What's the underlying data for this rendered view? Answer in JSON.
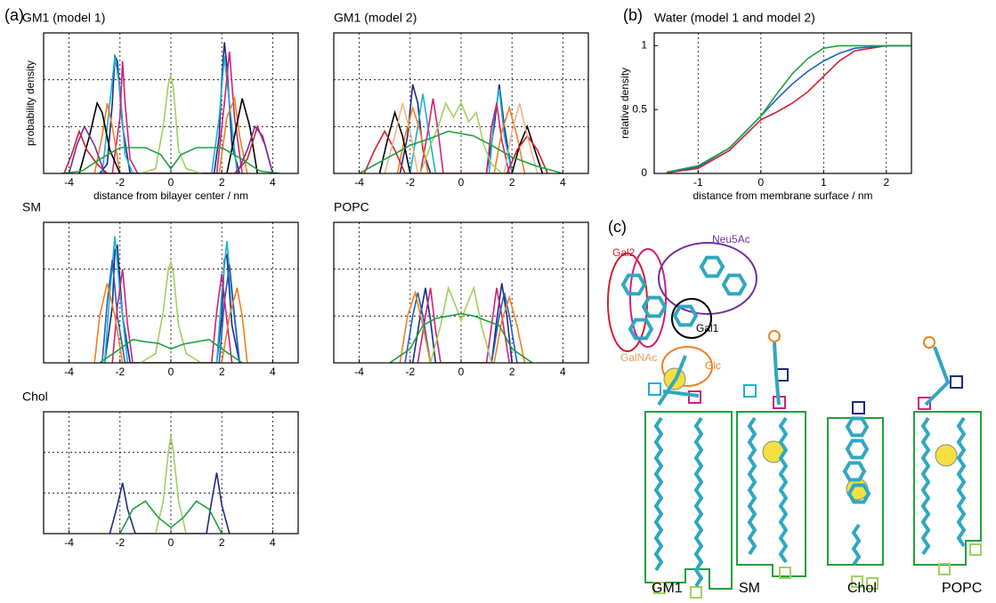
{
  "panel_labels": [
    "(a)",
    "(b)",
    "(c)"
  ],
  "chart_data": [
    {
      "type": "line",
      "title": "GM1 (model 1)",
      "xlabel": "distance from bilayer center / nm",
      "ylabel": "probability density",
      "xlim": [
        -5,
        5
      ],
      "xticks": [
        -4,
        -2,
        0,
        2,
        4
      ],
      "ylim": [
        0,
        3
      ],
      "ygrid": [
        1,
        2
      ],
      "series": [
        {
          "color": "#1f2a80",
          "x": [
            -2.8,
            -2.5,
            -2.3,
            -2.2,
            -2.1,
            -1.9,
            -1.6,
            1.7,
            1.9,
            2.0,
            2.1,
            2.2,
            2.4,
            2.7
          ],
          "values": [
            0,
            0.2,
            1.5,
            2.5,
            2.4,
            1.0,
            0,
            0,
            0.8,
            2.0,
            2.8,
            2.3,
            0.6,
            0
          ]
        },
        {
          "color": "#1ab0d8",
          "x": [
            -2.7,
            -2.4,
            -2.2,
            -2.0,
            -1.8,
            -1.5,
            1.6,
            1.9,
            2.1,
            2.3,
            2.6
          ],
          "values": [
            0,
            1.5,
            2.5,
            1.8,
            0.4,
            0,
            0,
            1.2,
            2.5,
            1.5,
            0
          ]
        },
        {
          "color": "#d0207a",
          "x": [
            -2.3,
            -2.0,
            -1.9,
            -1.8,
            -1.6,
            -1.3,
            1.8,
            2.1,
            2.3,
            2.5,
            2.8
          ],
          "values": [
            0,
            1.2,
            2.4,
            1.5,
            0.3,
            0,
            0,
            1.5,
            2.6,
            1.2,
            0
          ]
        },
        {
          "color": "#f08020",
          "x": [
            -3.0,
            -2.7,
            -2.5,
            -2.3,
            -2.0,
            1.9,
            2.2,
            2.5,
            2.7,
            3.0
          ],
          "values": [
            0,
            0.8,
            1.5,
            1.0,
            0,
            0,
            1.2,
            1.6,
            0.8,
            0
          ]
        },
        {
          "color": "#000000",
          "x": [
            -3.6,
            -3.2,
            -2.9,
            -2.7,
            -2.4,
            -2.0,
            2.2,
            2.5,
            2.8,
            3.1,
            3.4
          ],
          "values": [
            0,
            0.8,
            1.5,
            1.3,
            0.5,
            0,
            0,
            0.8,
            1.6,
            1.0,
            0
          ]
        },
        {
          "color": "#d02030",
          "x": [
            -4.2,
            -3.9,
            -3.6,
            -3.3,
            -2.9,
            -2.5,
            2.5,
            3.0,
            3.4,
            3.7,
            4.0
          ],
          "values": [
            0,
            0.4,
            0.9,
            0.5,
            0.2,
            0,
            0,
            0.3,
            1.0,
            0.6,
            0
          ]
        },
        {
          "color": "#7030a0",
          "x": [
            -4.0,
            -3.7,
            -3.4,
            -3.0,
            -2.6,
            2.6,
            3.0,
            3.3,
            3.6,
            4.0
          ],
          "values": [
            0,
            0.6,
            1.0,
            0.6,
            0,
            0,
            0.5,
            1.0,
            0.8,
            0
          ]
        },
        {
          "color": "#a0d060",
          "x": [
            -1.2,
            -0.6,
            -0.3,
            -0.1,
            0,
            0.1,
            0.3,
            0.6,
            1.2
          ],
          "values": [
            0,
            0.1,
            1.0,
            1.9,
            2.1,
            1.8,
            0.5,
            0.1,
            0
          ]
        },
        {
          "color": "#20a040",
          "x": [
            -4.3,
            -3.5,
            -2.8,
            -2.0,
            -1.0,
            -0.4,
            0,
            0.4,
            1.0,
            2.0,
            2.8,
            3.5,
            4.3
          ],
          "values": [
            0,
            0.05,
            0.3,
            0.55,
            0.55,
            0.4,
            0.1,
            0.4,
            0.55,
            0.55,
            0.3,
            0.05,
            0
          ]
        }
      ]
    },
    {
      "type": "line",
      "title": "GM1 (model 2)",
      "xlim": [
        -5,
        5
      ],
      "xticks": [
        -4,
        -2,
        0,
        2,
        4
      ],
      "ylim": [
        0,
        3
      ],
      "ygrid": [
        1,
        2
      ],
      "series": [
        {
          "color": "#1f2a80",
          "x": [
            -2.4,
            -2.1,
            -1.9,
            -1.7,
            -1.5,
            -1.2,
            1.0,
            1.3,
            1.5,
            1.7,
            2.0
          ],
          "values": [
            0,
            0.8,
            1.9,
            1.5,
            0.5,
            0,
            0,
            1.0,
            1.9,
            1.0,
            0
          ]
        },
        {
          "color": "#1ab0d8",
          "x": [
            -2.0,
            -1.7,
            -1.5,
            -1.3,
            -1.0,
            1.1,
            1.3,
            1.5,
            1.7,
            2.0
          ],
          "values": [
            0,
            1.0,
            1.7,
            1.0,
            0,
            0,
            1.2,
            1.8,
            0.8,
            0
          ]
        },
        {
          "color": "#d0207a",
          "x": [
            -1.6,
            -1.3,
            -1.1,
            -0.9,
            -0.7,
            1.0,
            1.2,
            1.4,
            1.6,
            1.9
          ],
          "values": [
            0,
            0.9,
            1.6,
            0.9,
            0,
            0,
            1.0,
            1.5,
            0.7,
            0
          ]
        },
        {
          "color": "#f08020",
          "x": [
            -2.5,
            -2.2,
            -1.9,
            -1.6,
            -1.3,
            1.3,
            1.6,
            1.9,
            2.2,
            2.5
          ],
          "values": [
            0,
            0.8,
            1.4,
            0.9,
            0,
            0,
            0.9,
            1.4,
            0.8,
            0
          ]
        },
        {
          "color": "#000000",
          "x": [
            -3.2,
            -2.9,
            -2.6,
            -2.3,
            -2.0,
            2.0,
            2.3,
            2.6,
            2.9,
            3.2
          ],
          "values": [
            0,
            0.7,
            1.3,
            0.8,
            0,
            0,
            0.6,
            1.0,
            0.5,
            0
          ]
        },
        {
          "color": "#d02030",
          "x": [
            -3.8,
            -3.4,
            -3.0,
            -2.6,
            -2.2,
            1.8,
            2.2,
            2.6,
            3.0,
            3.4
          ],
          "values": [
            0,
            0.5,
            0.9,
            0.5,
            0,
            0,
            0.5,
            0.8,
            0.5,
            0
          ]
        },
        {
          "color": "#e8b890",
          "x": [
            -3.0,
            -2.6,
            -2.3,
            -2.0,
            -1.7,
            1.7,
            2.0,
            2.3,
            2.6,
            3.0
          ],
          "values": [
            0,
            0.8,
            1.5,
            0.9,
            0,
            0,
            0.9,
            1.5,
            0.8,
            0
          ]
        },
        {
          "color": "#a0d060",
          "x": [
            -1.6,
            -1.2,
            -0.9,
            -0.6,
            -0.3,
            0,
            0.3,
            0.6,
            0.9,
            1.2,
            1.6
          ],
          "values": [
            0,
            0.6,
            1.0,
            1.5,
            1.2,
            1.5,
            1.1,
            1.3,
            0.6,
            0.2,
            0
          ]
        },
        {
          "color": "#20a040",
          "x": [
            -4.0,
            -3.0,
            -2.0,
            -1.2,
            -0.5,
            0,
            0.5,
            1.2,
            2.0,
            3.0,
            4.0
          ],
          "values": [
            0,
            0.3,
            0.6,
            0.75,
            0.9,
            0.85,
            0.8,
            0.6,
            0.35,
            0.15,
            0
          ]
        }
      ]
    },
    {
      "type": "line",
      "title": "SM",
      "xlim": [
        -5,
        5
      ],
      "xticks": [
        -4,
        -2,
        0,
        2,
        4
      ],
      "ylim": [
        0,
        3
      ],
      "ygrid": [
        1,
        2
      ],
      "series": [
        {
          "color": "#1f2a80",
          "x": [
            -2.6,
            -2.3,
            -2.2,
            -2.1,
            -1.9,
            -1.6,
            1.8,
            2.0,
            2.1,
            2.2,
            2.4,
            2.7
          ],
          "values": [
            0,
            1.2,
            2.4,
            2.5,
            1.0,
            0,
            0,
            1.0,
            2.2,
            2.3,
            0.8,
            0
          ]
        },
        {
          "color": "#1ab0d8",
          "x": [
            -2.6,
            -2.4,
            -2.2,
            -2.0,
            -1.7,
            1.8,
            2.0,
            2.2,
            2.4,
            2.7
          ],
          "values": [
            0,
            1.5,
            2.7,
            1.5,
            0,
            0,
            1.5,
            2.6,
            1.4,
            0
          ]
        },
        {
          "color": "#2060c0",
          "x": [
            -2.7,
            -2.5,
            -2.3,
            -2.1,
            -1.8,
            1.9,
            2.1,
            2.3,
            2.5,
            2.7
          ],
          "values": [
            0,
            1.3,
            2.2,
            1.0,
            0,
            0,
            1.3,
            2.1,
            1.0,
            0
          ]
        },
        {
          "color": "#d0207a",
          "x": [
            -2.3,
            -2.1,
            -1.9,
            -1.7,
            -1.5,
            1.6,
            1.8,
            2.0,
            2.2,
            2.4
          ],
          "values": [
            0,
            1.2,
            2.0,
            0.8,
            0,
            0,
            1.1,
            1.9,
            0.9,
            0
          ]
        },
        {
          "color": "#f08020",
          "x": [
            -3.0,
            -2.8,
            -2.5,
            -2.2,
            -1.9,
            2.0,
            2.3,
            2.6,
            2.8,
            3.0
          ],
          "values": [
            0,
            1.0,
            1.7,
            1.0,
            0,
            0,
            1.0,
            1.6,
            1.0,
            0
          ]
        },
        {
          "color": "#a0d060",
          "x": [
            -1.2,
            -0.6,
            -0.3,
            -0.1,
            0,
            0.1,
            0.3,
            0.6,
            1.2
          ],
          "values": [
            0,
            0.2,
            1.1,
            2.0,
            2.15,
            1.9,
            0.8,
            0.2,
            0
          ]
        },
        {
          "color": "#20a040",
          "x": [
            -2.8,
            -2.0,
            -1.5,
            -1.0,
            -0.5,
            0,
            0.5,
            1.0,
            1.5,
            2.0,
            2.8
          ],
          "values": [
            0,
            0.3,
            0.5,
            0.45,
            0.42,
            0.3,
            0.4,
            0.45,
            0.5,
            0.3,
            0
          ]
        }
      ]
    },
    {
      "type": "line",
      "title": "POPC",
      "xlim": [
        -5,
        5
      ],
      "xticks": [
        -4,
        -2,
        0,
        2,
        4
      ],
      "ylim": [
        0,
        3
      ],
      "ygrid": [
        1,
        2
      ],
      "series": [
        {
          "color": "#1f2a80",
          "x": [
            -1.9,
            -1.6,
            -1.4,
            -1.2,
            -1.0,
            1.2,
            1.4,
            1.6,
            1.8,
            2.0
          ],
          "values": [
            0,
            1.0,
            1.6,
            0.9,
            0,
            0,
            0.9,
            1.7,
            1.0,
            0
          ]
        },
        {
          "color": "#d0207a",
          "x": [
            -1.7,
            -1.4,
            -1.2,
            -1.0,
            -0.8,
            1.0,
            1.2,
            1.4,
            1.6,
            1.9
          ],
          "values": [
            0,
            1.0,
            1.6,
            0.7,
            0,
            0,
            0.8,
            1.6,
            1.0,
            0
          ]
        },
        {
          "color": "#2060c0",
          "x": [
            -2.2,
            -1.9,
            -1.7,
            -1.5,
            -1.2,
            1.2,
            1.5,
            1.7,
            1.9,
            2.2
          ],
          "values": [
            0,
            1.0,
            1.5,
            1.0,
            0,
            0,
            1.0,
            1.5,
            1.0,
            0
          ]
        },
        {
          "color": "#f08020",
          "x": [
            -2.4,
            -2.1,
            -1.8,
            -1.5,
            -1.2,
            1.3,
            1.6,
            1.9,
            2.2,
            2.5
          ],
          "values": [
            0,
            1.0,
            1.5,
            0.8,
            0,
            0,
            0.9,
            1.4,
            0.8,
            0
          ]
        },
        {
          "color": "#a0d060",
          "x": [
            -1.2,
            -0.8,
            -0.5,
            -0.2,
            0,
            0.2,
            0.5,
            0.8,
            1.2
          ],
          "values": [
            0,
            0.8,
            1.6,
            1.2,
            0.9,
            1.2,
            1.6,
            0.8,
            0
          ]
        },
        {
          "color": "#20a040",
          "x": [
            -2.8,
            -2.0,
            -1.5,
            -1.0,
            -0.5,
            0,
            0.5,
            1.0,
            1.5,
            2.0,
            2.8
          ],
          "values": [
            0,
            0.3,
            0.8,
            0.95,
            1.0,
            1.05,
            1.0,
            0.9,
            0.8,
            0.3,
            0
          ]
        }
      ]
    },
    {
      "type": "line",
      "title": "Chol",
      "xlim": [
        -5,
        5
      ],
      "xticks": [
        -4,
        -2,
        0,
        2,
        4
      ],
      "ylim": [
        0,
        3
      ],
      "ygrid": [
        1,
        2
      ],
      "series": [
        {
          "color": "#1f2a80",
          "x": [
            -2.4,
            -2.1,
            -1.9,
            -1.7,
            -1.4,
            1.4,
            1.6,
            1.8,
            2.0,
            2.3
          ],
          "values": [
            0,
            0.7,
            1.25,
            0.6,
            0,
            0,
            0.8,
            1.5,
            0.7,
            0
          ]
        },
        {
          "color": "#a0d060",
          "x": [
            -0.6,
            -0.3,
            -0.1,
            0,
            0.1,
            0.3,
            0.6
          ],
          "values": [
            0,
            0.8,
            2.0,
            2.4,
            2.0,
            0.8,
            0
          ]
        },
        {
          "color": "#20a040",
          "x": [
            -2.0,
            -1.5,
            -1.0,
            -0.5,
            0,
            0.5,
            1.0,
            1.5,
            2.0
          ],
          "values": [
            0,
            0.6,
            0.8,
            0.4,
            0.15,
            0.4,
            0.8,
            0.6,
            0
          ]
        }
      ]
    },
    {
      "type": "line",
      "title": "Water (model 1 and model 2)",
      "xlabel": "distance from membrane surface / nm",
      "ylabel": "relative density",
      "xlim": [
        -1.7,
        2.4
      ],
      "xticks": [
        -1,
        0,
        1,
        2
      ],
      "ylim": [
        0,
        1.1
      ],
      "yticks": [
        0,
        0.5,
        1
      ],
      "x": [
        -1.5,
        -1,
        -0.5,
        0,
        0.25,
        0.5,
        0.75,
        1,
        1.25,
        1.5,
        2,
        2.4
      ],
      "series": [
        {
          "color": "#d02030",
          "values": [
            0.005,
            0.04,
            0.18,
            0.42,
            0.48,
            0.55,
            0.64,
            0.76,
            0.88,
            0.96,
            1,
            1
          ]
        },
        {
          "color": "#2060c0",
          "values": [
            0.01,
            0.05,
            0.2,
            0.45,
            0.58,
            0.7,
            0.8,
            0.88,
            0.94,
            0.98,
            1,
            1
          ]
        },
        {
          "color": "#20a040",
          "values": [
            0.01,
            0.06,
            0.2,
            0.45,
            0.62,
            0.78,
            0.9,
            0.98,
            1,
            1,
            1,
            1
          ]
        }
      ]
    }
  ],
  "diagram": {
    "groups": [
      "Neu5Ac",
      "Gal2",
      "Gal1",
      "GalNAc",
      "Glc"
    ],
    "molecules": [
      "GM1",
      "SM",
      "Chol",
      "POPC"
    ]
  }
}
